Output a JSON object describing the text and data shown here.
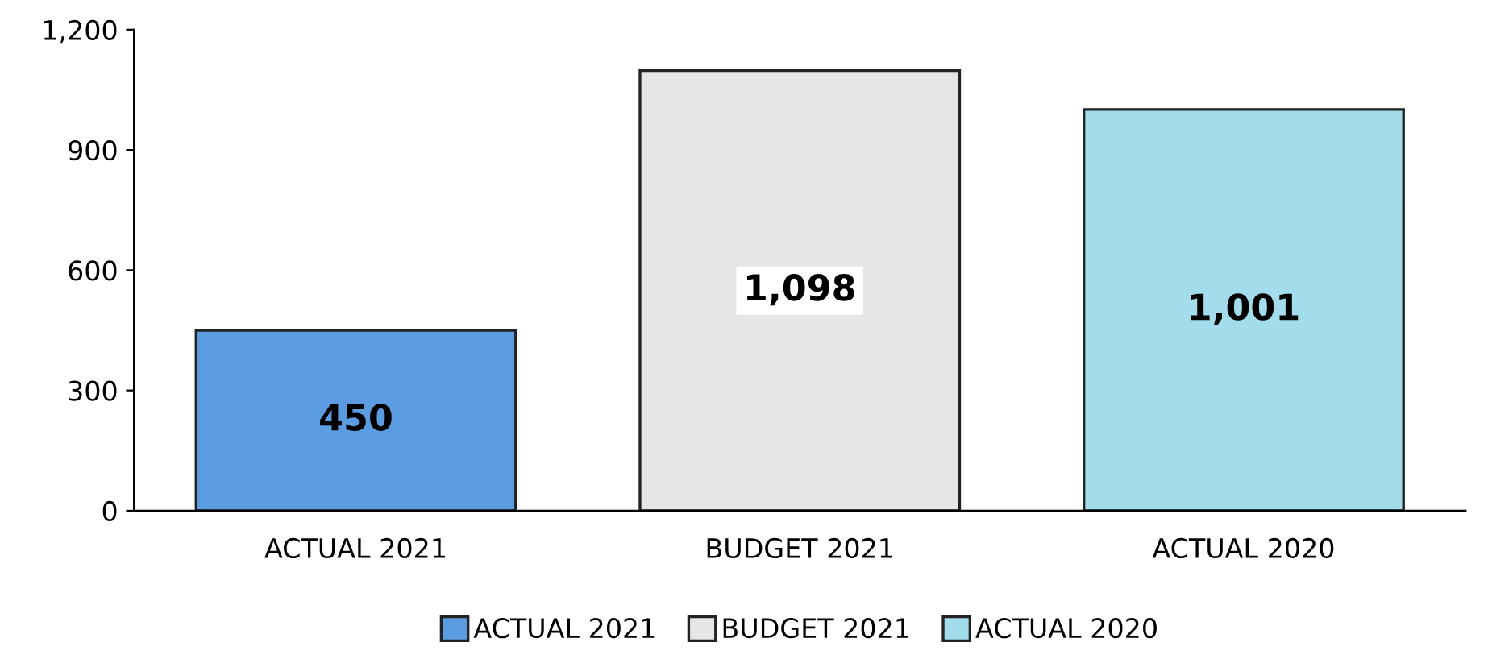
{
  "chart_data": {
    "type": "bar",
    "categories": [
      "ACTUAL 2021",
      "BUDGET 2021",
      "ACTUAL 2020"
    ],
    "series": [
      {
        "name": "ACTUAL 2021",
        "color": "#5b9be0",
        "values": [
          450,
          null,
          null
        ],
        "value_labels": [
          "450",
          null,
          null
        ]
      },
      {
        "name": "BUDGET 2021",
        "color": "#e6e6e6",
        "values": [
          null,
          1098,
          null
        ],
        "value_labels": [
          null,
          "1,098",
          null
        ]
      },
      {
        "name": "ACTUAL 2020",
        "color": "#a3dcea",
        "values": [
          null,
          null,
          1001
        ],
        "value_labels": [
          null,
          null,
          "1,001"
        ]
      }
    ],
    "ylim": [
      0,
      1200
    ],
    "yticks": [
      0,
      300,
      600,
      900,
      {
        "value": 1200,
        "label": "1,200"
      }
    ],
    "grid": false,
    "legend": "bottom"
  }
}
